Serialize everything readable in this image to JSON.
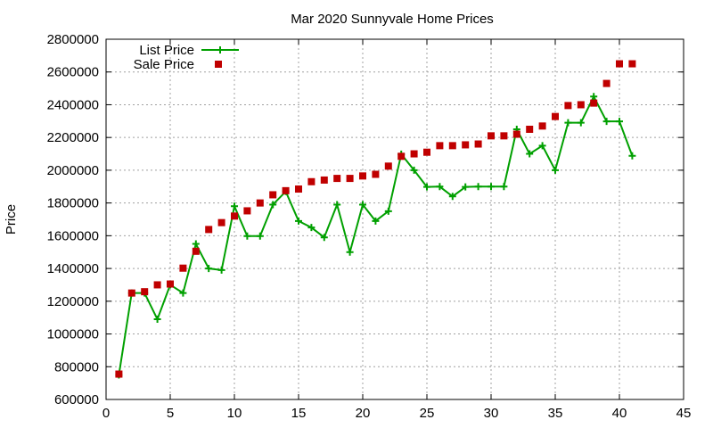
{
  "chart_data": {
    "type": "line",
    "title": "Mar 2020 Sunnyvale Home Prices",
    "xlabel": "",
    "ylabel": "Price",
    "xlim": [
      0,
      45
    ],
    "ylim": [
      600000,
      2800000
    ],
    "xticks": [
      0,
      5,
      10,
      15,
      20,
      25,
      30,
      35,
      40,
      45
    ],
    "yticks": [
      600000,
      800000,
      1000000,
      1200000,
      1400000,
      1600000,
      1800000,
      2000000,
      2200000,
      2400000,
      2600000,
      2800000
    ],
    "xtick_labels": [
      "0",
      "5",
      "10",
      "15",
      "20",
      "25",
      "30",
      "35",
      "40",
      "45"
    ],
    "ytick_labels": [
      "600000",
      "800000",
      "1000000",
      "1200000",
      "1400000",
      "1600000",
      "1800000",
      "2000000",
      "2200000",
      "2400000",
      "2600000",
      "2800000"
    ],
    "grid": true,
    "legend_position": "top-left",
    "series": [
      {
        "name": "List Price",
        "style": "line+cross",
        "color": "#00a000",
        "x": [
          1,
          2,
          3,
          4,
          5,
          6,
          7,
          8,
          9,
          10,
          11,
          12,
          13,
          14,
          15,
          16,
          17,
          18,
          19,
          20,
          21,
          22,
          23,
          24,
          25,
          26,
          27,
          28,
          29,
          30,
          31,
          32,
          33,
          34,
          35,
          36,
          37,
          38,
          39,
          40,
          41
        ],
        "y": [
          750000,
          1250000,
          1250000,
          1090000,
          1300000,
          1250000,
          1550000,
          1400000,
          1390000,
          1780000,
          1598000,
          1598000,
          1790000,
          1870000,
          1690000,
          1650000,
          1590000,
          1790000,
          1500000,
          1790000,
          1690000,
          1750000,
          2098000,
          2000000,
          1898000,
          1900000,
          1840000,
          1898000,
          1900000,
          1900000,
          1900000,
          2250000,
          2100000,
          2150000,
          2000000,
          2290000,
          2290000,
          2450000,
          2298000,
          2298000,
          2088000
        ]
      },
      {
        "name": "Sale Price",
        "style": "points",
        "color": "#c00000",
        "x": [
          1,
          2,
          3,
          4,
          5,
          6,
          7,
          8,
          9,
          10,
          11,
          12,
          13,
          14,
          15,
          16,
          17,
          18,
          19,
          20,
          21,
          22,
          23,
          24,
          25,
          26,
          27,
          28,
          29,
          30,
          31,
          32,
          33,
          34,
          35,
          36,
          37,
          38,
          39,
          40,
          41
        ],
        "y": [
          755000,
          1250000,
          1258000,
          1300000,
          1305000,
          1402000,
          1505000,
          1638000,
          1680000,
          1720000,
          1752000,
          1800000,
          1850000,
          1875000,
          1885000,
          1930000,
          1940000,
          1950000,
          1950000,
          1965000,
          1975000,
          2025000,
          2085000,
          2100000,
          2110000,
          2150000,
          2150000,
          2155000,
          2160000,
          2210000,
          2210000,
          2220000,
          2250000,
          2270000,
          2328000,
          2395000,
          2400000,
          2410000,
          2530000,
          2650000,
          2650000
        ]
      }
    ]
  }
}
